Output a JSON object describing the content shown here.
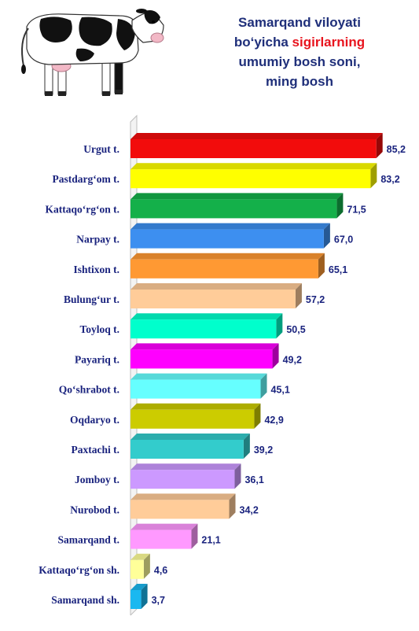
{
  "title": {
    "line1": "Samarqand viloyati",
    "line2_pre": "bo‘yicha ",
    "line2_highlight": "sigirlarning",
    "line3": "umumiy bosh soni,",
    "line4": "ming bosh",
    "highlight_color": "#e8141e",
    "text_color": "#1f2f7a"
  },
  "chart_data": {
    "type": "bar",
    "orientation": "horizontal",
    "title": "Samarqand viloyati bo‘yicha sigirlarning umumiy bosh soni, ming bosh",
    "categories": [
      "Urgut t.",
      "Pastdarg‘om t.",
      "Kattaqo‘rg‘on t.",
      "Narpay t.",
      "Ishtixon t.",
      "Bulung‘ur t.",
      "Toyloq t.",
      "Payariq t.",
      "Qo‘shrabot t.",
      "Oqdaryo t.",
      "Paxtachi t.",
      "Jomboy t.",
      "Nurobod t.",
      "Samarqand t.",
      "Kattaqo‘rg‘on sh.",
      "Samarqand sh."
    ],
    "values": [
      85.2,
      83.2,
      71.5,
      67.0,
      65.1,
      57.2,
      50.5,
      49.2,
      45.1,
      42.9,
      39.2,
      36.1,
      34.2,
      21.1,
      4.6,
      3.7
    ],
    "value_labels": [
      "85,2",
      "83,2",
      "71,5",
      "67,0",
      "65,1",
      "57,2",
      "50,5",
      "49,2",
      "45,1",
      "42,9",
      "39,2",
      "36,1",
      "34,2",
      "21,1",
      "4,6",
      "3,7"
    ],
    "colors": [
      "#f20c0c",
      "#ffff00",
      "#14b04a",
      "#3d8ff0",
      "#ff9933",
      "#ffcc99",
      "#00ffcc",
      "#ff00ff",
      "#66ffff",
      "#cccc00",
      "#33cccc",
      "#cc99ff",
      "#ffcc99",
      "#ff99ff",
      "#ffff99",
      "#1ab8f0"
    ],
    "xlim": [
      0,
      90
    ],
    "grid": false,
    "legend": "none"
  }
}
